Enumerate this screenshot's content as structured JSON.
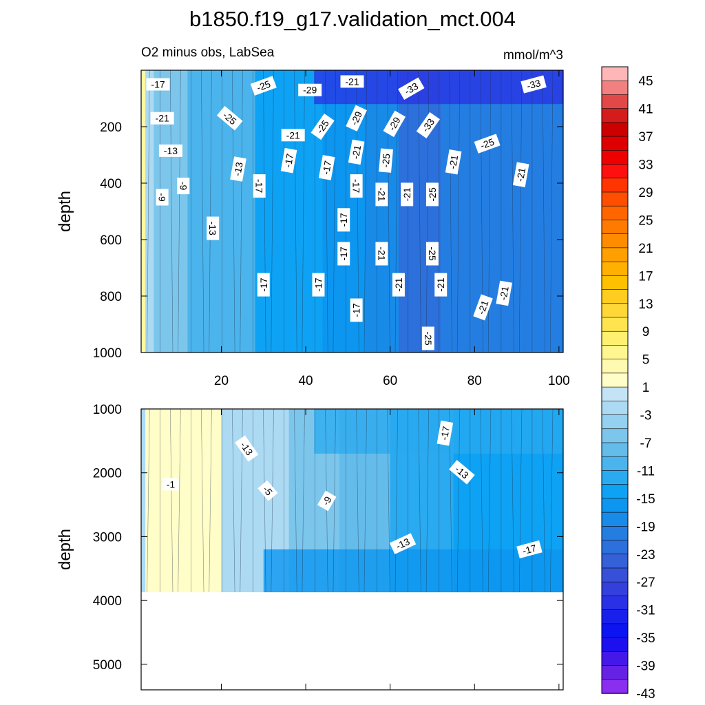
{
  "chart_data": {
    "type": "heatmap",
    "title": "b1850.f19_g17.validation_mct.004",
    "subtitle_left": "O2 minus obs, LabSea",
    "subtitle_right": "mmol/m^3",
    "x_range": [
      1,
      101
    ],
    "x_ticks": [
      "20",
      "40",
      "60",
      "80",
      "100"
    ],
    "x_tick_values": [
      20,
      40,
      60,
      80,
      100
    ],
    "panels": [
      {
        "name": "upper",
        "ylabel": "depth",
        "y_range": [
          0,
          1000
        ],
        "y_ticks": [
          "200",
          "400",
          "600",
          "800",
          "1000"
        ],
        "y_tick_values": [
          200,
          400,
          600,
          800,
          1000
        ],
        "valid_depth_max": 1000,
        "bands": [
          {
            "x0": 1,
            "x1": 2,
            "value": 3
          },
          {
            "x0": 2,
            "x1": 4,
            "value": -5
          },
          {
            "x0": 4,
            "x1": 12,
            "value": -9
          },
          {
            "x0": 12,
            "x1": 28,
            "value": -13
          },
          {
            "x0": 28,
            "x1": 44,
            "value": -16
          },
          {
            "x0": 44,
            "x1": 54,
            "value": -18
          },
          {
            "x0": 54,
            "x1": 62,
            "value": -21
          },
          {
            "x0": 62,
            "x1": 72,
            "value": -25
          },
          {
            "x0": 72,
            "x1": 101,
            "value": -22
          }
        ],
        "surface_band": {
          "depth_max": 120,
          "value": -32
        },
        "contour_labels": [
          {
            "text": "-17",
            "x": 5,
            "depth": 50,
            "rot": 0
          },
          {
            "text": "-25",
            "x": 30,
            "depth": 55,
            "rot": -20
          },
          {
            "text": "-29",
            "x": 41,
            "depth": 70,
            "rot": 0
          },
          {
            "text": "-21",
            "x": 51,
            "depth": 40,
            "rot": 0
          },
          {
            "text": "-33",
            "x": 65,
            "depth": 65,
            "rot": -30
          },
          {
            "text": "-33",
            "x": 94,
            "depth": 50,
            "rot": -15
          },
          {
            "text": "-21",
            "x": 6,
            "depth": 170,
            "rot": 0
          },
          {
            "text": "-25",
            "x": 22,
            "depth": 170,
            "rot": 40
          },
          {
            "text": "-21",
            "x": 37,
            "depth": 230,
            "rot": 0
          },
          {
            "text": "-25",
            "x": 44,
            "depth": 200,
            "rot": -55
          },
          {
            "text": "-29",
            "x": 52,
            "depth": 170,
            "rot": -65
          },
          {
            "text": "-29",
            "x": 61,
            "depth": 190,
            "rot": -60
          },
          {
            "text": "-33",
            "x": 69,
            "depth": 195,
            "rot": -55
          },
          {
            "text": "-13",
            "x": 8,
            "depth": 285,
            "rot": 0
          },
          {
            "text": "-13",
            "x": 24,
            "depth": 350,
            "rot": -80
          },
          {
            "text": "-17",
            "x": 36,
            "depth": 320,
            "rot": -80
          },
          {
            "text": "-17",
            "x": 45,
            "depth": 345,
            "rot": -80
          },
          {
            "text": "-21",
            "x": 52,
            "depth": 290,
            "rot": -80
          },
          {
            "text": "-25",
            "x": 59,
            "depth": 320,
            "rot": -85
          },
          {
            "text": "-21",
            "x": 75,
            "depth": 325,
            "rot": -80
          },
          {
            "text": "-25",
            "x": 83,
            "depth": 260,
            "rot": -20
          },
          {
            "text": "-21",
            "x": 91,
            "depth": 370,
            "rot": -80
          },
          {
            "text": "-9",
            "x": 11,
            "depth": 410,
            "rot": 90
          },
          {
            "text": "-9",
            "x": 6,
            "depth": 450,
            "rot": 90
          },
          {
            "text": "-17",
            "x": 29,
            "depth": 410,
            "rot": 90
          },
          {
            "text": "-17",
            "x": 52,
            "depth": 410,
            "rot": 90
          },
          {
            "text": "-21",
            "x": 58,
            "depth": 440,
            "rot": 90
          },
          {
            "text": "-21",
            "x": 64,
            "depth": 440,
            "rot": -90
          },
          {
            "text": "-25",
            "x": 70,
            "depth": 440,
            "rot": -90
          },
          {
            "text": "-13",
            "x": 18,
            "depth": 560,
            "rot": 90
          },
          {
            "text": "-17",
            "x": 49,
            "depth": 530,
            "rot": -90
          },
          {
            "text": "-17",
            "x": 49,
            "depth": 650,
            "rot": -90
          },
          {
            "text": "-21",
            "x": 58,
            "depth": 650,
            "rot": 90
          },
          {
            "text": "-25",
            "x": 70,
            "depth": 650,
            "rot": 90
          },
          {
            "text": "-17",
            "x": 30,
            "depth": 760,
            "rot": -90
          },
          {
            "text": "-17",
            "x": 43,
            "depth": 760,
            "rot": -90
          },
          {
            "text": "-21",
            "x": 62,
            "depth": 760,
            "rot": -90
          },
          {
            "text": "-21",
            "x": 72,
            "depth": 760,
            "rot": -90
          },
          {
            "text": "-21",
            "x": 87,
            "depth": 790,
            "rot": -80
          },
          {
            "text": "-21",
            "x": 82,
            "depth": 840,
            "rot": -70
          },
          {
            "text": "-17",
            "x": 52,
            "depth": 850,
            "rot": -90
          },
          {
            "text": "-25",
            "x": 69,
            "depth": 950,
            "rot": 90
          }
        ]
      },
      {
        "name": "lower",
        "ylabel": "depth",
        "y_range": [
          1000,
          5400
        ],
        "y_ticks": [
          "1000",
          "2000",
          "3000",
          "4000",
          "5000"
        ],
        "y_tick_values": [
          1000,
          2000,
          3000,
          4000,
          5000
        ],
        "valid_depth_max": 3870,
        "bands": [
          {
            "x0": 1,
            "x1": 2,
            "value": -5
          },
          {
            "x0": 2,
            "x1": 20,
            "value": -1
          },
          {
            "x0": 20,
            "x1": 36,
            "value": -5
          },
          {
            "x0": 36,
            "x1": 48,
            "value": -9
          },
          {
            "x0": 48,
            "x1": 60,
            "value": -11
          },
          {
            "x0": 60,
            "x1": 75,
            "value": -15
          },
          {
            "x0": 75,
            "x1": 101,
            "value": -16
          }
        ],
        "surface_band": {
          "depth_max": 1700,
          "value": -14
        },
        "deep_band": {
          "depth_min": 3200,
          "value": -18
        },
        "contour_labels": [
          {
            "text": "-17",
            "x": 73,
            "depth": 1380,
            "rot": -80
          },
          {
            "text": "-13",
            "x": 26,
            "depth": 1620,
            "rot": 55
          },
          {
            "text": "-13",
            "x": 77,
            "depth": 1990,
            "rot": 40
          },
          {
            "text": "-1",
            "x": 8,
            "depth": 2180,
            "rot": 0
          },
          {
            "text": "-5",
            "x": 31,
            "depth": 2280,
            "rot": 50
          },
          {
            "text": "-9",
            "x": 45,
            "depth": 2440,
            "rot": -60
          },
          {
            "text": "-13",
            "x": 63,
            "depth": 3110,
            "rot": -25
          },
          {
            "text": "-17",
            "x": 93,
            "depth": 3200,
            "rot": -15
          }
        ]
      }
    ],
    "colorbar": {
      "labels": [
        "45",
        "41",
        "37",
        "33",
        "29",
        "25",
        "21",
        "17",
        "13",
        "9",
        "5",
        "1",
        "-3",
        "-7",
        "-11",
        "-15",
        "-19",
        "-23",
        "-27",
        "-31",
        "-35",
        "-39",
        "-43"
      ],
      "colors": [
        "#ffb6b6",
        "#f28080",
        "#e24848",
        "#d41c1c",
        "#cc0000",
        "#de0000",
        "#ef0000",
        "#ff1010",
        "#ff3400",
        "#ff4e00",
        "#ff6600",
        "#ff7a00",
        "#ff8c00",
        "#ffa000",
        "#ffb000",
        "#ffc000",
        "#ffcc20",
        "#ffd838",
        "#ffe450",
        "#fff070",
        "#fff690",
        "#fffab0",
        "#fffdc8",
        "#c4e4f6",
        "#acdaf3",
        "#94d0ef",
        "#7cc6ec",
        "#64bceb",
        "#4cb4ec",
        "#2aaaf0",
        "#0ea2f4",
        "#0c96f0",
        "#188ae8",
        "#247ee2",
        "#2c70dc",
        "#3460d8",
        "#3650d8",
        "#3440dc",
        "#2a30e4",
        "#1a20ec",
        "#0c14f2",
        "#1c10ee",
        "#4418e6",
        "#6622e4",
        "#8a2ef0"
      ]
    }
  }
}
